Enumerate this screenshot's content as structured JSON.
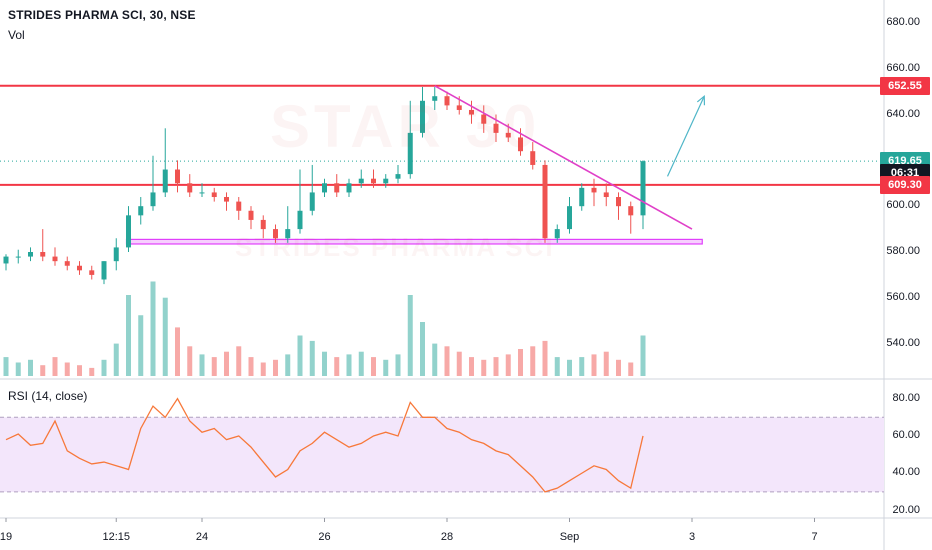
{
  "header": {
    "title": "STRIDES PHARMA SCI, 30, NSE",
    "volume_label": "Vol",
    "rsi_label": "RSI (14, close)"
  },
  "watermark": {
    "text": "STAR 30",
    "subtext": "STRIDES PHARMA SCI"
  },
  "price_axis": {
    "ticks": [
      "680.00",
      "660.00",
      "640.00",
      "620.00",
      "600.00",
      "580.00",
      "560.00",
      "540.00"
    ],
    "tick_values": [
      680,
      660,
      640,
      620,
      600,
      580,
      560,
      540
    ],
    "badges": [
      {
        "text": "652.55",
        "value": 652.55,
        "color": "#f23645"
      },
      {
        "text": "619.65",
        "value": 619.65,
        "color": "#26a69a"
      },
      {
        "text": "06:31",
        "value": 614.5,
        "color": "#131722"
      },
      {
        "text": "609.30",
        "value": 609.3,
        "color": "#f23645"
      }
    ]
  },
  "rsi_axis": {
    "ticks": [
      "80.00",
      "60.00",
      "40.00",
      "20.00"
    ],
    "tick_values": [
      80,
      60,
      40,
      20
    ],
    "band": [
      30,
      70
    ]
  },
  "time_axis": {
    "labels": [
      "19",
      "12:15",
      "24",
      "26",
      "28",
      "Sep",
      "3",
      "7"
    ],
    "label_positions": [
      0,
      9,
      16,
      26,
      36,
      46,
      56,
      66
    ]
  },
  "colors": {
    "up": "#26a69a",
    "down": "#ef5350",
    "resistance": "#f23645",
    "trendline": "#e040c8",
    "support_zone": "#e040fb",
    "arrow": "#4fb6c8",
    "rsi_line": "#f7783a",
    "rsi_band": "#f3e6fb"
  },
  "chart_data": [
    {
      "type": "candlestick",
      "title": "STRIDES PHARMA SCI, 30, NSE",
      "ylim": [
        525,
        690
      ],
      "x": [
        0,
        1,
        2,
        3,
        4,
        5,
        6,
        7,
        8,
        9,
        10,
        11,
        12,
        13,
        14,
        15,
        16,
        17,
        18,
        19,
        20,
        21,
        22,
        23,
        24,
        25,
        26,
        27,
        28,
        29,
        30,
        31,
        32,
        33,
        34,
        35,
        36,
        37,
        38,
        39,
        40,
        41,
        42,
        43,
        44,
        45,
        46,
        47,
        48,
        49,
        50,
        51,
        52
      ],
      "open": [
        575,
        578,
        578,
        580,
        578,
        576,
        574,
        572,
        568,
        576,
        582,
        596,
        600,
        606,
        616,
        610,
        606,
        606,
        604,
        602,
        598,
        594,
        590,
        586,
        590,
        598,
        606,
        610,
        606,
        610,
        612,
        610,
        612,
        614,
        632,
        646,
        648,
        644,
        642,
        640,
        636,
        632,
        630,
        624,
        618,
        586,
        590,
        600,
        608,
        606,
        604,
        600,
        596
      ],
      "high": [
        579,
        581,
        582,
        590,
        582,
        578,
        576,
        574,
        576,
        586,
        600,
        604,
        622,
        634,
        620,
        614,
        610,
        608,
        606,
        604,
        600,
        596,
        592,
        600,
        616,
        618,
        612,
        614,
        612,
        616,
        616,
        614,
        618,
        646,
        652,
        652,
        650,
        648,
        646,
        644,
        640,
        636,
        634,
        628,
        620,
        592,
        604,
        610,
        612,
        610,
        606,
        602,
        620
      ],
      "low": [
        572,
        575,
        576,
        576,
        574,
        572,
        570,
        568,
        566,
        572,
        580,
        592,
        598,
        604,
        606,
        604,
        604,
        602,
        598,
        594,
        590,
        586,
        584,
        584,
        588,
        596,
        604,
        604,
        604,
        608,
        608,
        608,
        610,
        612,
        630,
        642,
        642,
        640,
        636,
        632,
        628,
        628,
        622,
        616,
        584,
        584,
        588,
        598,
        600,
        600,
        594,
        588,
        590
      ],
      "close": [
        578,
        578,
        580,
        578,
        576,
        574,
        572,
        570,
        576,
        582,
        596,
        600,
        606,
        616,
        610,
        606,
        606,
        604,
        602,
        598,
        594,
        590,
        586,
        590,
        598,
        606,
        610,
        606,
        610,
        612,
        610,
        612,
        614,
        632,
        646,
        648,
        644,
        642,
        640,
        636,
        632,
        630,
        624,
        618,
        586,
        590,
        600,
        608,
        606,
        604,
        600,
        596,
        619.65
      ],
      "volume": [
        14,
        10,
        12,
        8,
        14,
        10,
        8,
        6,
        12,
        24,
        60,
        45,
        70,
        58,
        36,
        22,
        16,
        14,
        18,
        22,
        14,
        10,
        12,
        16,
        30,
        26,
        18,
        14,
        16,
        18,
        14,
        12,
        16,
        60,
        40,
        24,
        22,
        18,
        14,
        12,
        14,
        16,
        20,
        22,
        26,
        14,
        12,
        14,
        16,
        18,
        12,
        10,
        30
      ],
      "annotations": {
        "resistance": 652.55,
        "support_neckline": 609.3,
        "support_zone": [
          583.5,
          585.5
        ],
        "trendline": {
          "from": {
            "x": 35,
            "y": 652.55
          },
          "to": {
            "x": 56,
            "y": 590
          }
        },
        "target_arrow": {
          "from": {
            "x": 54,
            "y": 613
          },
          "to": {
            "x": 57,
            "y": 648
          }
        }
      }
    },
    {
      "type": "line",
      "title": "RSI (14, close)",
      "ylim": [
        16,
        90
      ],
      "x": [
        0,
        1,
        2,
        3,
        4,
        5,
        6,
        7,
        8,
        9,
        10,
        11,
        12,
        13,
        14,
        15,
        16,
        17,
        18,
        19,
        20,
        21,
        22,
        23,
        24,
        25,
        26,
        27,
        28,
        29,
        30,
        31,
        32,
        33,
        34,
        35,
        36,
        37,
        38,
        39,
        40,
        41,
        42,
        43,
        44,
        45,
        46,
        47,
        48,
        49,
        50,
        51,
        52
      ],
      "series": [
        {
          "values": [
            58,
            61,
            55,
            56,
            68,
            52,
            48,
            45,
            46,
            44,
            42,
            64,
            76,
            70,
            80,
            68,
            62,
            64,
            58,
            60,
            54,
            46,
            38,
            42,
            52,
            56,
            62,
            58,
            54,
            56,
            60,
            62,
            60,
            78,
            70,
            70,
            64,
            62,
            58,
            56,
            52,
            50,
            44,
            38,
            30,
            32,
            36,
            40,
            44,
            42,
            36,
            32,
            60
          ]
        }
      ]
    }
  ]
}
